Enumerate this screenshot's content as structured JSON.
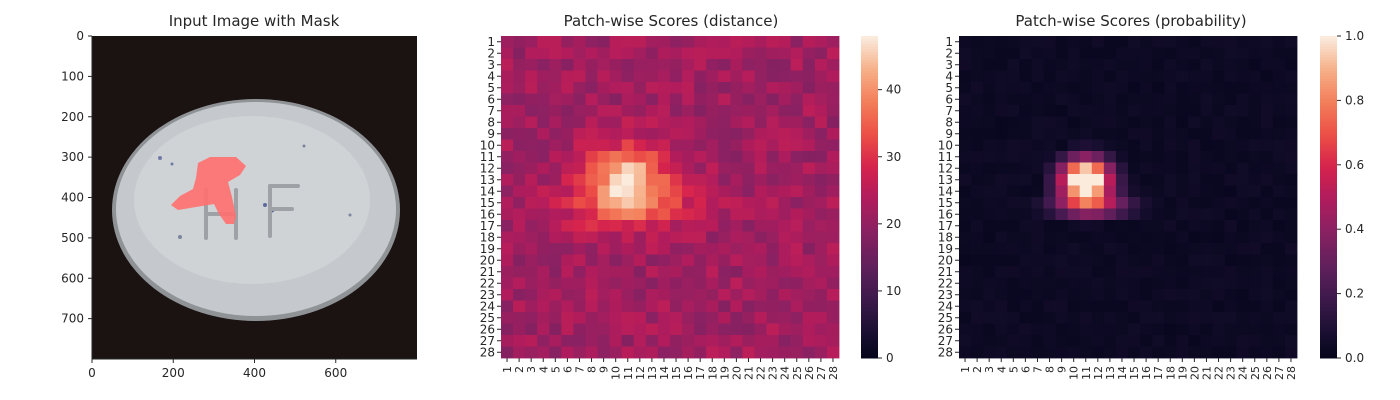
{
  "chart_data": [
    {
      "type": "image",
      "title": "Input Image with Mask",
      "x_ticks": [
        "0",
        "200",
        "400",
        "600"
      ],
      "x_tick_values": [
        0,
        200,
        400,
        600
      ],
      "y_ticks": [
        "0",
        "100",
        "200",
        "300",
        "400",
        "500",
        "600",
        "700"
      ],
      "y_tick_values": [
        0,
        100,
        200,
        300,
        400,
        500,
        600,
        700
      ],
      "xlim": [
        0,
        800
      ],
      "ylim": [
        800,
        0
      ],
      "content": {
        "background_color": "#1a1212",
        "pill_color": "#c9cdd1",
        "engraved_text": "HF",
        "mask_color": "#ff6b6b"
      }
    },
    {
      "type": "heatmap",
      "title": "Patch-wise Scores (distance)",
      "x_ticks": [
        "1",
        "2",
        "3",
        "4",
        "5",
        "6",
        "7",
        "8",
        "9",
        "10",
        "11",
        "12",
        "13",
        "14",
        "15",
        "16",
        "17",
        "18",
        "19",
        "20",
        "21",
        "22",
        "23",
        "24",
        "25",
        "26",
        "27",
        "28"
      ],
      "y_ticks": [
        "1",
        "2",
        "3",
        "4",
        "5",
        "6",
        "7",
        "8",
        "9",
        "10",
        "11",
        "12",
        "13",
        "14",
        "15",
        "16",
        "17",
        "18",
        "19",
        "20",
        "21",
        "22",
        "23",
        "24",
        "25",
        "26",
        "27",
        "28"
      ],
      "colorbar_ticks": [
        "0",
        "10",
        "20",
        "30",
        "40"
      ],
      "colorbar_tick_values": [
        0,
        10,
        20,
        30,
        40
      ],
      "vmin": 0,
      "vmax": 48,
      "colormap": "rocket",
      "rows": 28,
      "cols": 28,
      "base_value": 22,
      "peak_value": 48,
      "peak_row": 13,
      "peak_col": 11
    },
    {
      "type": "heatmap",
      "title": "Patch-wise Scores (probability)",
      "x_ticks": [
        "1",
        "2",
        "3",
        "4",
        "5",
        "6",
        "7",
        "8",
        "9",
        "10",
        "11",
        "12",
        "13",
        "14",
        "15",
        "16",
        "17",
        "18",
        "19",
        "20",
        "21",
        "22",
        "23",
        "24",
        "25",
        "26",
        "27",
        "28"
      ],
      "y_ticks": [
        "1",
        "2",
        "3",
        "4",
        "5",
        "6",
        "7",
        "8",
        "9",
        "10",
        "11",
        "12",
        "13",
        "14",
        "15",
        "16",
        "17",
        "18",
        "19",
        "20",
        "21",
        "22",
        "23",
        "24",
        "25",
        "26",
        "27",
        "28"
      ],
      "colorbar_ticks": [
        "0.0",
        "0.2",
        "0.4",
        "0.6",
        "0.8",
        "1.0"
      ],
      "colorbar_tick_values": [
        0.0,
        0.2,
        0.4,
        0.6,
        0.8,
        1.0
      ],
      "vmin": 0,
      "vmax": 1,
      "colormap": "rocket",
      "rows": 28,
      "cols": 28,
      "peak_row": 13,
      "peak_col": 11
    }
  ]
}
